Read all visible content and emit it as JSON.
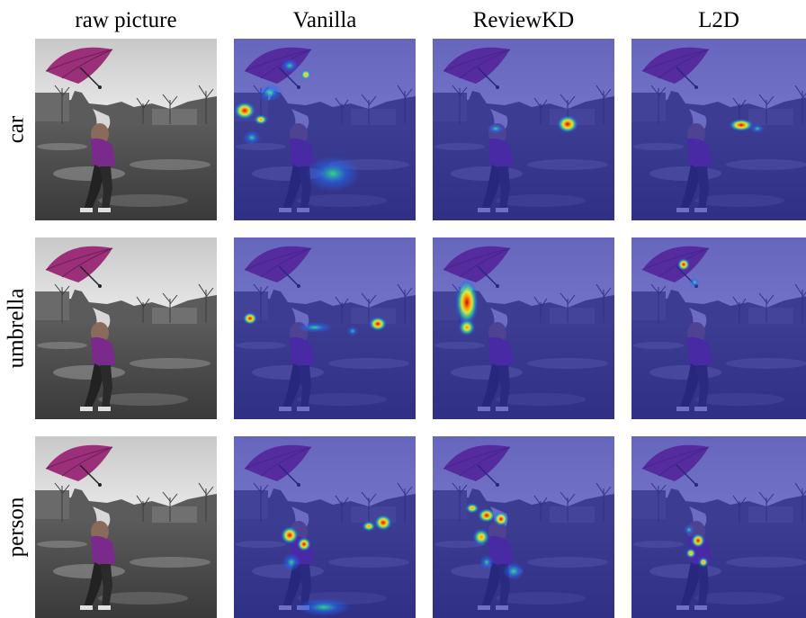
{
  "columns": [
    "raw picture",
    "Vanilla",
    "ReviewKD",
    "L2D"
  ],
  "rows": [
    "car",
    "umbrella",
    "person"
  ],
  "overlay_color": "#2a2ab4",
  "umbrella_color": "#9c2f7a",
  "heat_colors": {
    "hot": "#cc0000",
    "warm": "#ff9a00",
    "mid": "#ffff30",
    "cool": "#30ff90",
    "cold": "#2070ff"
  }
}
